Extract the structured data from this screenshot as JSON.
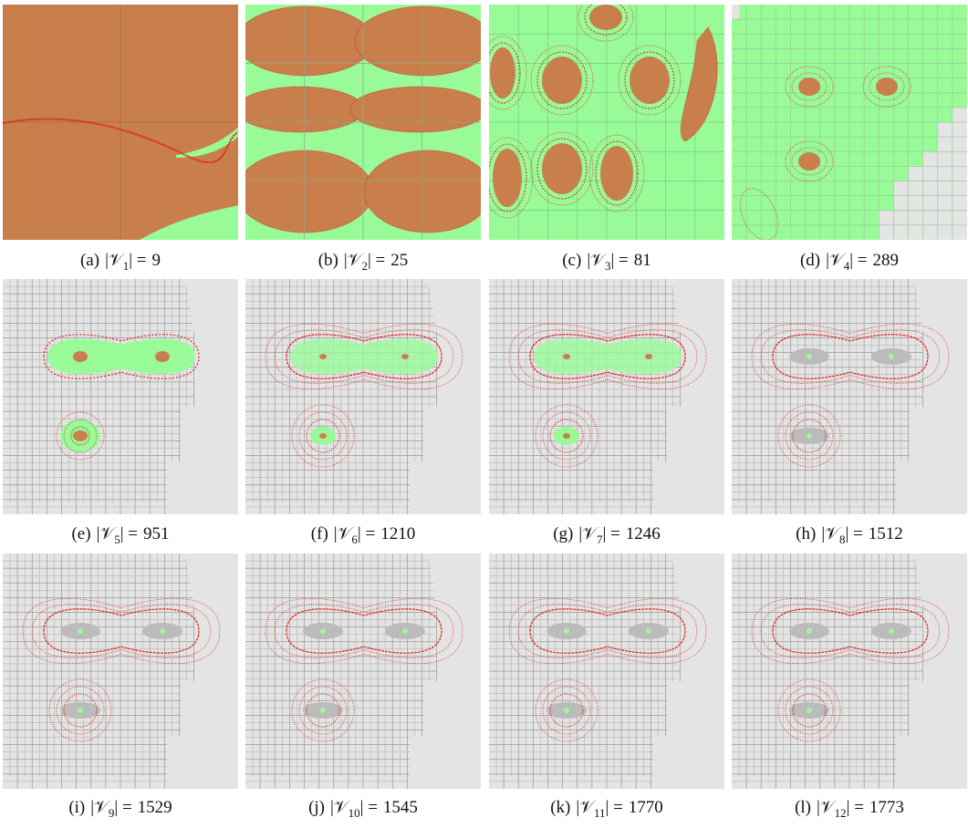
{
  "figure": {
    "panels": [
      {
        "label": "(a)",
        "set": "|𝒱",
        "index": "1",
        "relation": "| =",
        "count": 9
      },
      {
        "label": "(b)",
        "set": "|𝒱",
        "index": "2",
        "relation": "| =",
        "count": 25
      },
      {
        "label": "(c)",
        "set": "|𝒱",
        "index": "3",
        "relation": "| =",
        "count": 81
      },
      {
        "label": "(d)",
        "set": "|𝒱",
        "index": "4",
        "relation": "| =",
        "count": 289
      },
      {
        "label": "(e)",
        "set": "|𝒱",
        "index": "5",
        "relation": "| =",
        "count": 951
      },
      {
        "label": "(f)",
        "set": "|𝒱",
        "index": "6",
        "relation": "| =",
        "count": 1210
      },
      {
        "label": "(g)",
        "set": "|𝒱",
        "index": "7",
        "relation": "| =",
        "count": 1246
      },
      {
        "label": "(h)",
        "set": "|𝒱",
        "index": "8",
        "relation": "| =",
        "count": 1512
      },
      {
        "label": "(i)",
        "set": "|𝒱",
        "index": "9",
        "relation": "| =",
        "count": 1529
      },
      {
        "label": "(j)",
        "set": "|𝒱",
        "index": "10",
        "relation": "| =",
        "count": 1545
      },
      {
        "label": "(k)",
        "set": "|𝒱",
        "index": "11",
        "relation": "| =",
        "count": 1770
      },
      {
        "label": "(l)",
        "set": "|𝒱",
        "index": "12",
        "relation": "| =",
        "count": 1773
      }
    ]
  }
}
